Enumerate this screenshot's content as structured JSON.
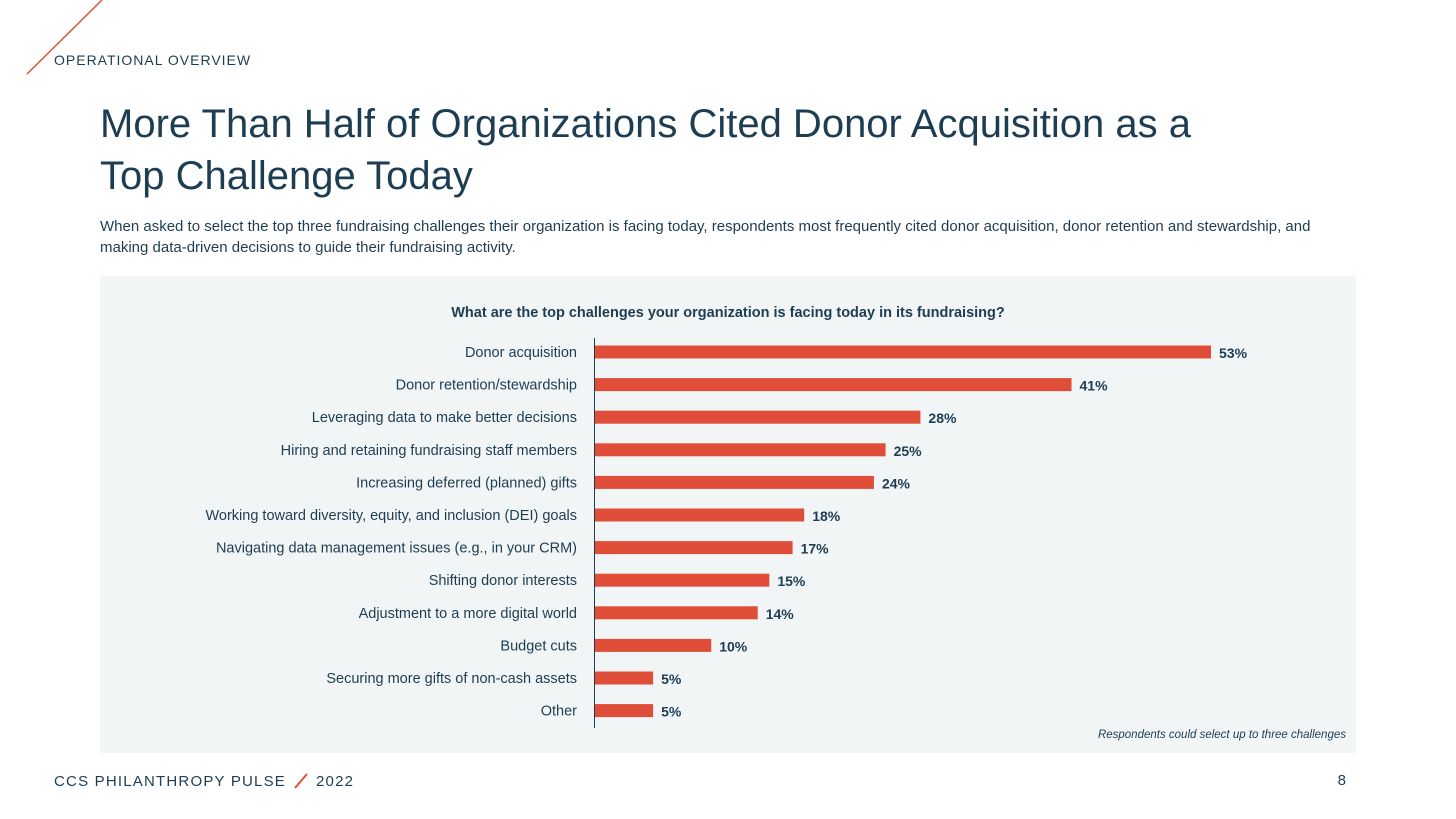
{
  "header": {
    "section_label": "OPERATIONAL OVERVIEW",
    "title_line1": "More Than Half of Organizations Cited Donor Acquisition as a",
    "title_line2": "Top Challenge Today",
    "subtitle": "When asked to select the top three fundraising challenges their organization is facing today, respondents most frequently cited donor acquisition, donor retention and stewardship, and making data-driven decisions to guide their fundraising activity."
  },
  "colors": {
    "accent": "#e04e39",
    "text": "#1d3d52",
    "panel": "#f2f5f5"
  },
  "chart_data": {
    "type": "bar",
    "orientation": "horizontal",
    "title": "What are the top challenges your organization is facing today in its fundraising?",
    "categories": [
      "Donor acquisition",
      "Donor retention/stewardship",
      "Leveraging data to make better decisions",
      "Hiring and retaining fundraising staff members",
      "Increasing deferred (planned) gifts",
      "Working toward diversity, equity, and inclusion (DEI) goals",
      "Navigating data management issues (e.g., in your CRM)",
      "Shifting donor interests",
      "Adjustment to a more digital world",
      "Budget cuts",
      "Securing more gifts of non-cash assets",
      "Other"
    ],
    "values": [
      53,
      41,
      28,
      25,
      24,
      18,
      17,
      15,
      14,
      10,
      5,
      5
    ],
    "value_labels": [
      "53%",
      "41%",
      "28%",
      "25%",
      "24%",
      "18%",
      "17%",
      "15%",
      "14%",
      "10%",
      "5%",
      "5%"
    ],
    "bar_color": "#e04e39",
    "xlim": [
      0,
      53
    ],
    "grid": false,
    "note": "Respondents could select up to three challenges"
  },
  "footer": {
    "brand": "CCS PHILANTHROPY PULSE",
    "year": "2022",
    "page_number": "8"
  }
}
